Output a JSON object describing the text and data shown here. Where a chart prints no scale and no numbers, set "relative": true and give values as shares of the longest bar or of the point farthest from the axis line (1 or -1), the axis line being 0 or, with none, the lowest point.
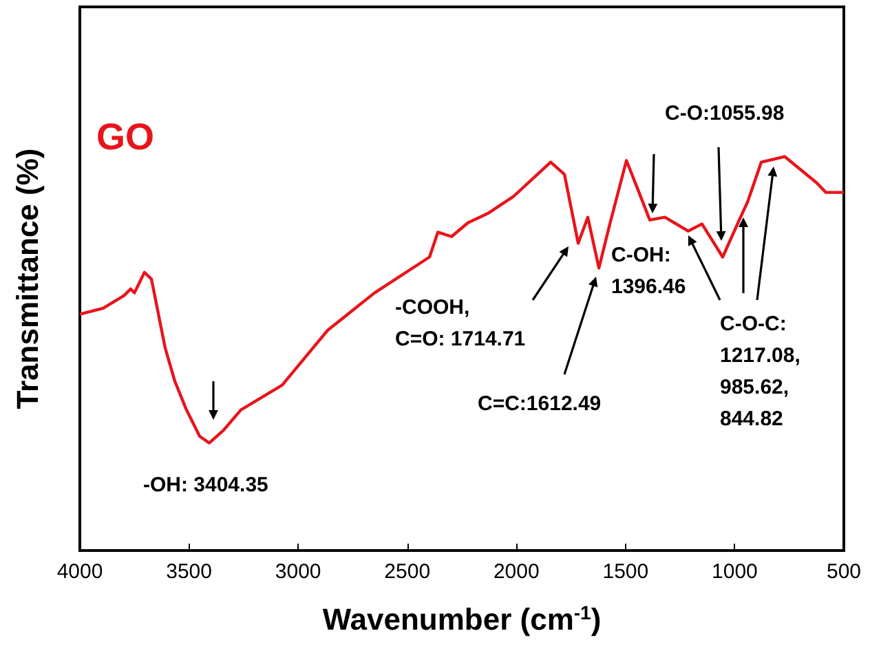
{
  "chart_data": {
    "type": "line",
    "relative": true,
    "xlabel": "Wavenumber (cm$^{-1}$)",
    "ylabel": "Transmittance (%)",
    "xlim": [
      4000,
      500
    ],
    "xticks": [
      4000,
      3500,
      3000,
      2500,
      2000,
      1500,
      1000,
      500
    ],
    "grid": false,
    "legend": false,
    "marker": "none",
    "line_style": "solid",
    "series": [
      {
        "name": "GO",
        "color": "#e8141b",
        "x": [
          4000,
          3893,
          3798,
          3767,
          3750,
          3704,
          3672,
          3609,
          3565,
          3514,
          3451,
          3407,
          3344,
          3262,
          3073,
          2865,
          2650,
          2398,
          2360,
          2297,
          2222,
          2127,
          2013,
          1843,
          1780,
          1717,
          1673,
          1622,
          1572,
          1496,
          1446,
          1389,
          1320,
          1213,
          1150,
          1055,
          979,
          941,
          878,
          771,
          626,
          582,
          500
        ],
        "values": [
          0.6,
          0.615,
          0.647,
          0.664,
          0.654,
          0.706,
          0.689,
          0.514,
          0.43,
          0.36,
          0.29,
          0.273,
          0.304,
          0.357,
          0.42,
          0.559,
          0.654,
          0.745,
          0.808,
          0.797,
          0.832,
          0.857,
          0.899,
          0.986,
          0.955,
          0.78,
          0.846,
          0.717,
          0.829,
          0.99,
          0.92,
          0.839,
          0.846,
          0.811,
          0.829,
          0.745,
          0.839,
          0.885,
          0.986,
          1,
          0.934,
          0.909,
          0.909
        ]
      }
    ],
    "annotations": [
      "-OH: 3404.35",
      "-COOH,\nC=O: 1714.71",
      "C=C:1612.49",
      "C-OH:\n1396.46",
      "C-O:1055.98",
      "C-O-C:\n1217.08,\n985.62,\n844.82"
    ]
  }
}
